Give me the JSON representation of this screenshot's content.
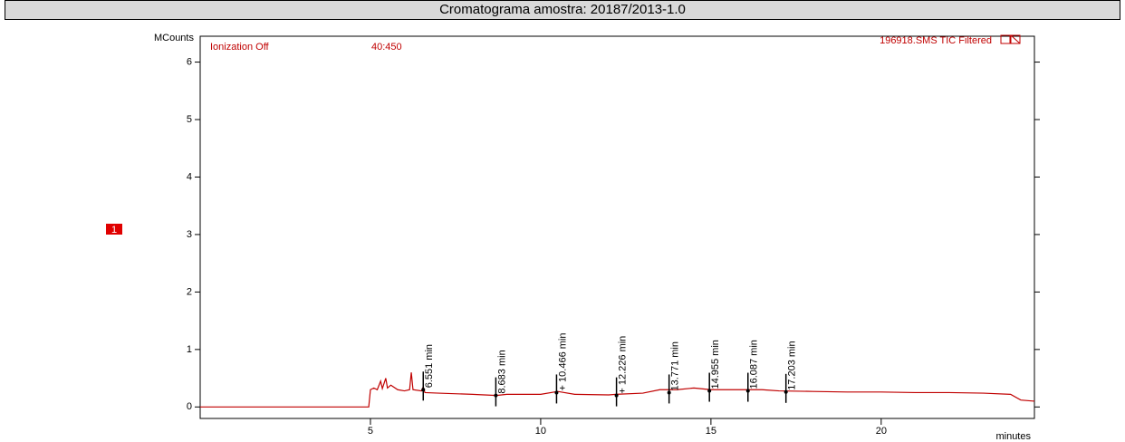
{
  "chart_data": {
    "type": "line",
    "title": "Cromatograma amostra: 20187/2013-1.0",
    "y_label": "MCounts",
    "x_label": "minutes",
    "annotations": {
      "mode": "Ionization Off",
      "range": "40:450",
      "file": "196918.SMS TIC Filtered",
      "badge": "1"
    },
    "xlim": [
      0,
      24.5
    ],
    "xticks": [
      5,
      10,
      15,
      20
    ],
    "ylim": [
      -0.2,
      6.45
    ],
    "yticks": [
      0,
      1,
      2,
      3,
      4,
      5,
      6
    ],
    "series": [
      {
        "name": "TIC",
        "color": "#c00000",
        "x": [
          0,
          4.95,
          5.0,
          5.1,
          5.2,
          5.3,
          5.35,
          5.45,
          5.5,
          5.6,
          5.8,
          6.0,
          6.15,
          6.2,
          6.25,
          6.5,
          6.55,
          6.6,
          7,
          8,
          8.7,
          9,
          10,
          10.5,
          11,
          12,
          12.2,
          13,
          13.5,
          13.8,
          14,
          14.5,
          15,
          15.5,
          16,
          16.5,
          17,
          18,
          19,
          20,
          21,
          22,
          23,
          23.8,
          24.1,
          24.5
        ],
        "values": [
          0,
          0,
          0.3,
          0.33,
          0.3,
          0.45,
          0.32,
          0.5,
          0.33,
          0.38,
          0.3,
          0.28,
          0.3,
          0.6,
          0.3,
          0.28,
          0.35,
          0.25,
          0.24,
          0.22,
          0.2,
          0.22,
          0.22,
          0.27,
          0.22,
          0.21,
          0.22,
          0.24,
          0.3,
          0.3,
          0.3,
          0.33,
          0.3,
          0.3,
          0.3,
          0.3,
          0.28,
          0.27,
          0.26,
          0.26,
          0.25,
          0.25,
          0.24,
          0.22,
          0.12,
          0.1
        ]
      }
    ],
    "peaks": {
      "x": [
        6.551,
        8.683,
        10.466,
        12.226,
        13.771,
        14.955,
        16.087,
        17.203
      ],
      "values": [
        0.3,
        0.2,
        0.25,
        0.2,
        0.25,
        0.28,
        0.28,
        0.26
      ],
      "labels": [
        "6.551 min",
        "8.683 min",
        "+ 10.466 min",
        "+ 12.226 min",
        "13.771 min",
        "14.955 min",
        "16.087 min",
        "17.203 min"
      ]
    }
  }
}
